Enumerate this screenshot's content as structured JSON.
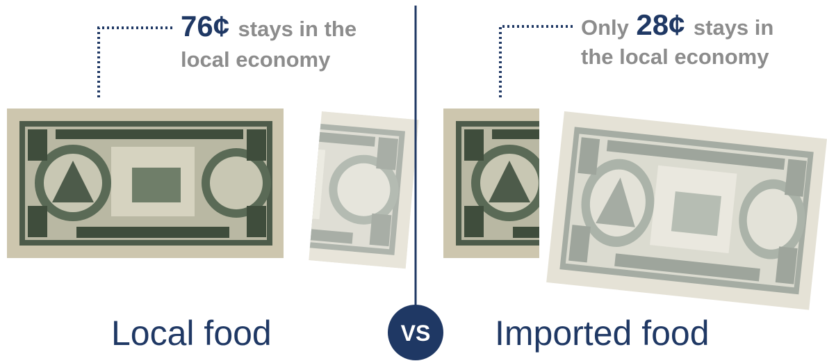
{
  "left": {
    "amount": "76¢",
    "line1": "stays in the",
    "line2": "local economy",
    "label": "Local food"
  },
  "right": {
    "prefix": "Only",
    "amount": "28¢",
    "line1": "stays in",
    "line2": "the local economy",
    "label": "Imported food"
  },
  "divider": {
    "label": "VS"
  }
}
